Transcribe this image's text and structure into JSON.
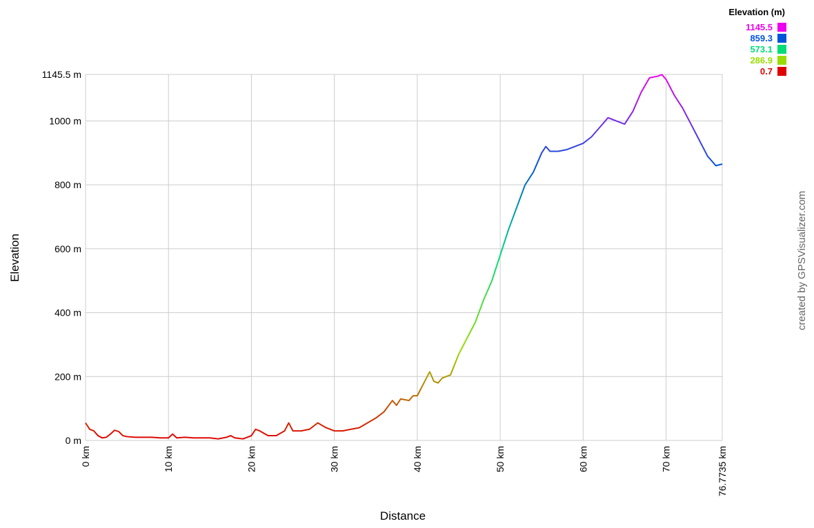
{
  "chart_data": {
    "type": "line",
    "xlabel": "Distance",
    "ylabel": "Elevation",
    "credit": "created by GPSVisualizer.com",
    "x": [
      0,
      0.5,
      1,
      1.5,
      2,
      2.5,
      3,
      3.5,
      4,
      4.5,
      5,
      6,
      7,
      8,
      9,
      10,
      10.5,
      11,
      12,
      13,
      14,
      15,
      16,
      17,
      17.5,
      18,
      19,
      20,
      20.5,
      21,
      22,
      23,
      24,
      24.5,
      25,
      26,
      27,
      28,
      29,
      30,
      31,
      32,
      33,
      34,
      35,
      36,
      37,
      37.5,
      38,
      39,
      39.5,
      40,
      41,
      41.5,
      42,
      42.5,
      43,
      44,
      45,
      46,
      47,
      48,
      49,
      50,
      51,
      52,
      53,
      54,
      55,
      55.5,
      56,
      57,
      58,
      59,
      60,
      61,
      62,
      63,
      64,
      65,
      66,
      67,
      68,
      69,
      69.5,
      70,
      71,
      72,
      73,
      74,
      75,
      76,
      76.7735
    ],
    "values": [
      55,
      35,
      30,
      15,
      8,
      10,
      20,
      32,
      28,
      15,
      12,
      10,
      10,
      10,
      8,
      8,
      20,
      8,
      10,
      8,
      8,
      8,
      5,
      10,
      15,
      8,
      5,
      15,
      35,
      30,
      15,
      15,
      30,
      55,
      30,
      30,
      35,
      55,
      40,
      30,
      30,
      35,
      40,
      55,
      70,
      90,
      125,
      110,
      130,
      125,
      140,
      140,
      190,
      215,
      185,
      180,
      195,
      205,
      270,
      320,
      370,
      440,
      500,
      580,
      660,
      730,
      800,
      840,
      900,
      920,
      905,
      905,
      910,
      920,
      930,
      950,
      980,
      1010,
      1000,
      990,
      1030,
      1090,
      1135,
      1140,
      1145,
      1130,
      1080,
      1040,
      990,
      940,
      890,
      860,
      865
    ],
    "xlim": [
      0,
      76.7735
    ],
    "xticks": [
      {
        "value": 0,
        "label": "0 km"
      },
      {
        "value": 10,
        "label": "10 km"
      },
      {
        "value": 20,
        "label": "20 km"
      },
      {
        "value": 30,
        "label": "30 km"
      },
      {
        "value": 40,
        "label": "40 km"
      },
      {
        "value": 50,
        "label": "50 km"
      },
      {
        "value": 60,
        "label": "60 km"
      },
      {
        "value": 70,
        "label": "70 km"
      },
      {
        "value": 76.7735,
        "label": "76.7735 km"
      }
    ],
    "ylim": [
      0,
      1145.5
    ],
    "yticks": [
      {
        "value": 0,
        "label": "0 m"
      },
      {
        "value": 200,
        "label": "200 m"
      },
      {
        "value": 400,
        "label": "400 m"
      },
      {
        "value": 600,
        "label": "600 m"
      },
      {
        "value": 800,
        "label": "800 m"
      },
      {
        "value": 1000,
        "label": "1000 m"
      },
      {
        "value": 1145.5,
        "label": "1145.5 m"
      }
    ],
    "grid": true,
    "legend": {
      "title": "Elevation (m)",
      "items": [
        {
          "value": 1145.5,
          "color": "#ee00ee"
        },
        {
          "value": 859.3,
          "color": "#0055dd"
        },
        {
          "value": 573.1,
          "color": "#00dd77"
        },
        {
          "value": 286.9,
          "color": "#99dd00"
        },
        {
          "value": 0.7,
          "color": "#e00000"
        }
      ]
    }
  }
}
